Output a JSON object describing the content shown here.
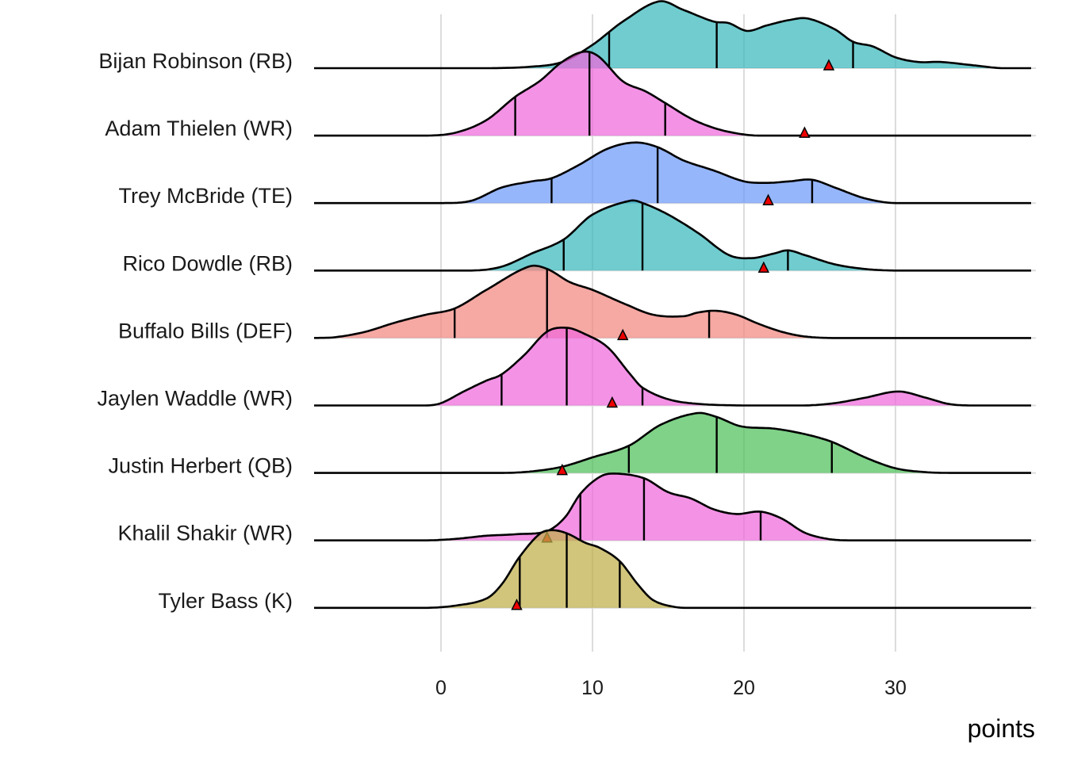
{
  "chart_data": {
    "type": "ridgeline",
    "title": "",
    "xlabel": "points",
    "ylabel": "",
    "xlim": [
      -8.5,
      39
    ],
    "x_ticks": [
      0,
      10,
      20,
      30
    ],
    "x_tick_labels": [
      "0",
      "10",
      "20",
      "30"
    ],
    "grid": "vertical major gridlines",
    "legend": "none",
    "marker": "red triangle = actual points scored",
    "quantile_lines": [
      0.1,
      0.5,
      0.9
    ],
    "series": [
      {
        "name": "Bijan Robinson (RB)",
        "color": "#39B8BC",
        "quantiles": [
          11.1,
          18.2,
          27.2
        ],
        "actual": 25.6,
        "density": [
          [
            -8.5,
            0
          ],
          [
            3,
            0
          ],
          [
            6,
            0.02
          ],
          [
            8,
            0.08
          ],
          [
            10,
            0.3
          ],
          [
            12,
            0.6
          ],
          [
            14.4,
            0.86
          ],
          [
            16,
            0.75
          ],
          [
            18,
            0.6
          ],
          [
            19,
            0.58
          ],
          [
            20.2,
            0.48
          ],
          [
            21.5,
            0.55
          ],
          [
            23,
            0.62
          ],
          [
            24.2,
            0.64
          ],
          [
            26,
            0.5
          ],
          [
            27.2,
            0.34
          ],
          [
            28.5,
            0.28
          ],
          [
            30,
            0.14
          ],
          [
            31.5,
            0.08
          ],
          [
            33,
            0.08
          ],
          [
            35,
            0.04
          ],
          [
            37,
            0
          ],
          [
            39,
            0
          ]
        ]
      },
      {
        "name": "Adam Thielen (WR)",
        "color": "#F068DD",
        "quantiles": [
          4.9,
          9.8,
          14.8
        ],
        "actual": 24.0,
        "density": [
          [
            -8.5,
            0
          ],
          [
            -1,
            0
          ],
          [
            1,
            0.04
          ],
          [
            3,
            0.2
          ],
          [
            4.9,
            0.5
          ],
          [
            6.5,
            0.7
          ],
          [
            8,
            0.95
          ],
          [
            9.4,
            1.08
          ],
          [
            10.4,
            1.02
          ],
          [
            12,
            0.7
          ],
          [
            13.5,
            0.57
          ],
          [
            14.8,
            0.42
          ],
          [
            16.5,
            0.22
          ],
          [
            18,
            0.1
          ],
          [
            19.5,
            0.03
          ],
          [
            21,
            0
          ],
          [
            39,
            0
          ]
        ]
      },
      {
        "name": "Trey McBride (TE)",
        "color": "#6E9AF9",
        "quantiles": [
          7.3,
          14.3,
          24.5
        ],
        "actual": 21.6,
        "density": [
          [
            -8.5,
            0
          ],
          [
            0,
            0
          ],
          [
            2,
            0.03
          ],
          [
            4,
            0.2
          ],
          [
            6,
            0.28
          ],
          [
            7.3,
            0.32
          ],
          [
            9,
            0.48
          ],
          [
            11,
            0.7
          ],
          [
            12.8,
            0.78
          ],
          [
            14.3,
            0.72
          ],
          [
            16,
            0.55
          ],
          [
            18,
            0.42
          ],
          [
            20,
            0.28
          ],
          [
            21.5,
            0.26
          ],
          [
            23,
            0.28
          ],
          [
            24.5,
            0.3
          ],
          [
            26,
            0.2
          ],
          [
            28,
            0.06
          ],
          [
            30,
            0
          ],
          [
            39,
            0
          ]
        ]
      },
      {
        "name": "Rico Dowdle (RB)",
        "color": "#39B8BC",
        "quantiles": [
          8.1,
          13.3,
          22.9
        ],
        "actual": 21.3,
        "density": [
          [
            -8.5,
            0
          ],
          [
            2,
            0
          ],
          [
            4,
            0.05
          ],
          [
            6,
            0.22
          ],
          [
            8.1,
            0.4
          ],
          [
            10,
            0.72
          ],
          [
            12.5,
            0.9
          ],
          [
            13.3,
            0.87
          ],
          [
            15,
            0.72
          ],
          [
            17,
            0.48
          ],
          [
            19,
            0.2
          ],
          [
            20.5,
            0.16
          ],
          [
            22,
            0.22
          ],
          [
            22.9,
            0.26
          ],
          [
            24,
            0.2
          ],
          [
            26,
            0.08
          ],
          [
            28,
            0.02
          ],
          [
            30,
            0
          ],
          [
            39,
            0
          ]
        ]
      },
      {
        "name": "Buffalo Bills (DEF)",
        "color": "#F3877F",
        "quantiles": [
          0.9,
          7.0,
          17.7
        ],
        "actual": 12.0,
        "density": [
          [
            -8.5,
            0
          ],
          [
            -7,
            0.01
          ],
          [
            -5,
            0.08
          ],
          [
            -3,
            0.2
          ],
          [
            -1,
            0.3
          ],
          [
            0.9,
            0.38
          ],
          [
            3,
            0.62
          ],
          [
            5.8,
            0.92
          ],
          [
            7,
            0.89
          ],
          [
            8.5,
            0.72
          ],
          [
            10,
            0.62
          ],
          [
            12,
            0.45
          ],
          [
            14,
            0.3
          ],
          [
            16,
            0.28
          ],
          [
            17,
            0.33
          ],
          [
            18.2,
            0.35
          ],
          [
            19.5,
            0.3
          ],
          [
            21,
            0.18
          ],
          [
            22.5,
            0.08
          ],
          [
            24,
            0.02
          ],
          [
            26,
            0
          ],
          [
            39,
            0
          ]
        ]
      },
      {
        "name": "Jaylen Waddle (WR)",
        "color": "#F068DD",
        "quantiles": [
          4.0,
          8.3,
          13.3
        ],
        "actual": 11.3,
        "density": [
          [
            -8.5,
            0
          ],
          [
            -1,
            0
          ],
          [
            0,
            0.03
          ],
          [
            1.5,
            0.18
          ],
          [
            3,
            0.32
          ],
          [
            4,
            0.4
          ],
          [
            5.5,
            0.65
          ],
          [
            7,
            0.95
          ],
          [
            8.3,
            1.0
          ],
          [
            9.5,
            0.92
          ],
          [
            11,
            0.75
          ],
          [
            12.5,
            0.4
          ],
          [
            13.3,
            0.23
          ],
          [
            15,
            0.08
          ],
          [
            17,
            0.02
          ],
          [
            20,
            0
          ],
          [
            24,
            0
          ],
          [
            26,
            0.03
          ],
          [
            28,
            0.1
          ],
          [
            30.2,
            0.18
          ],
          [
            32,
            0.1
          ],
          [
            33.5,
            0.02
          ],
          [
            35,
            0
          ],
          [
            39,
            0
          ]
        ]
      },
      {
        "name": "Justin Herbert (QB)",
        "color": "#4EC05A",
        "quantiles": [
          12.4,
          18.2,
          25.8
        ],
        "actual": 8.0,
        "density": [
          [
            -8.5,
            0
          ],
          [
            4,
            0
          ],
          [
            6,
            0.02
          ],
          [
            8,
            0.08
          ],
          [
            10,
            0.2
          ],
          [
            12.4,
            0.35
          ],
          [
            14.5,
            0.62
          ],
          [
            16.9,
            0.77
          ],
          [
            18.2,
            0.72
          ],
          [
            19.8,
            0.6
          ],
          [
            22,
            0.57
          ],
          [
            24,
            0.5
          ],
          [
            25.8,
            0.4
          ],
          [
            28,
            0.2
          ],
          [
            30,
            0.06
          ],
          [
            32,
            0.01
          ],
          [
            34,
            0
          ],
          [
            39,
            0
          ]
        ]
      },
      {
        "name": "Khalil Shakir (WR)",
        "color": "#F068DD",
        "quantiles": [
          9.2,
          13.4,
          21.1
        ],
        "actual": 7.0,
        "density": [
          [
            -8.5,
            0
          ],
          [
            -1,
            0
          ],
          [
            1,
            0.02
          ],
          [
            3,
            0.06
          ],
          [
            5,
            0.08
          ],
          [
            7,
            0.12
          ],
          [
            8.2,
            0.3
          ],
          [
            9.2,
            0.6
          ],
          [
            10.5,
            0.82
          ],
          [
            11.5,
            0.86
          ],
          [
            13.4,
            0.8
          ],
          [
            15,
            0.62
          ],
          [
            16.5,
            0.54
          ],
          [
            18,
            0.4
          ],
          [
            19.5,
            0.34
          ],
          [
            21.1,
            0.37
          ],
          [
            22.5,
            0.28
          ],
          [
            24,
            0.1
          ],
          [
            25.5,
            0.02
          ],
          [
            27,
            0
          ],
          [
            39,
            0
          ]
        ]
      },
      {
        "name": "Tyler Bass (K)",
        "color": "#BFAE4A",
        "quantiles": [
          5.2,
          8.3,
          11.8
        ],
        "actual": 5.0,
        "density": [
          [
            -8.5,
            0
          ],
          [
            -1,
            0
          ],
          [
            1,
            0.03
          ],
          [
            3,
            0.12
          ],
          [
            4,
            0.3
          ],
          [
            5.2,
            0.66
          ],
          [
            6.5,
            0.95
          ],
          [
            7.3,
            1.0
          ],
          [
            8.3,
            0.96
          ],
          [
            9.5,
            0.84
          ],
          [
            10.5,
            0.77
          ],
          [
            11.8,
            0.6
          ],
          [
            13,
            0.3
          ],
          [
            14,
            0.1
          ],
          [
            15.5,
            0.01
          ],
          [
            17,
            0
          ],
          [
            39,
            0
          ]
        ]
      }
    ]
  }
}
